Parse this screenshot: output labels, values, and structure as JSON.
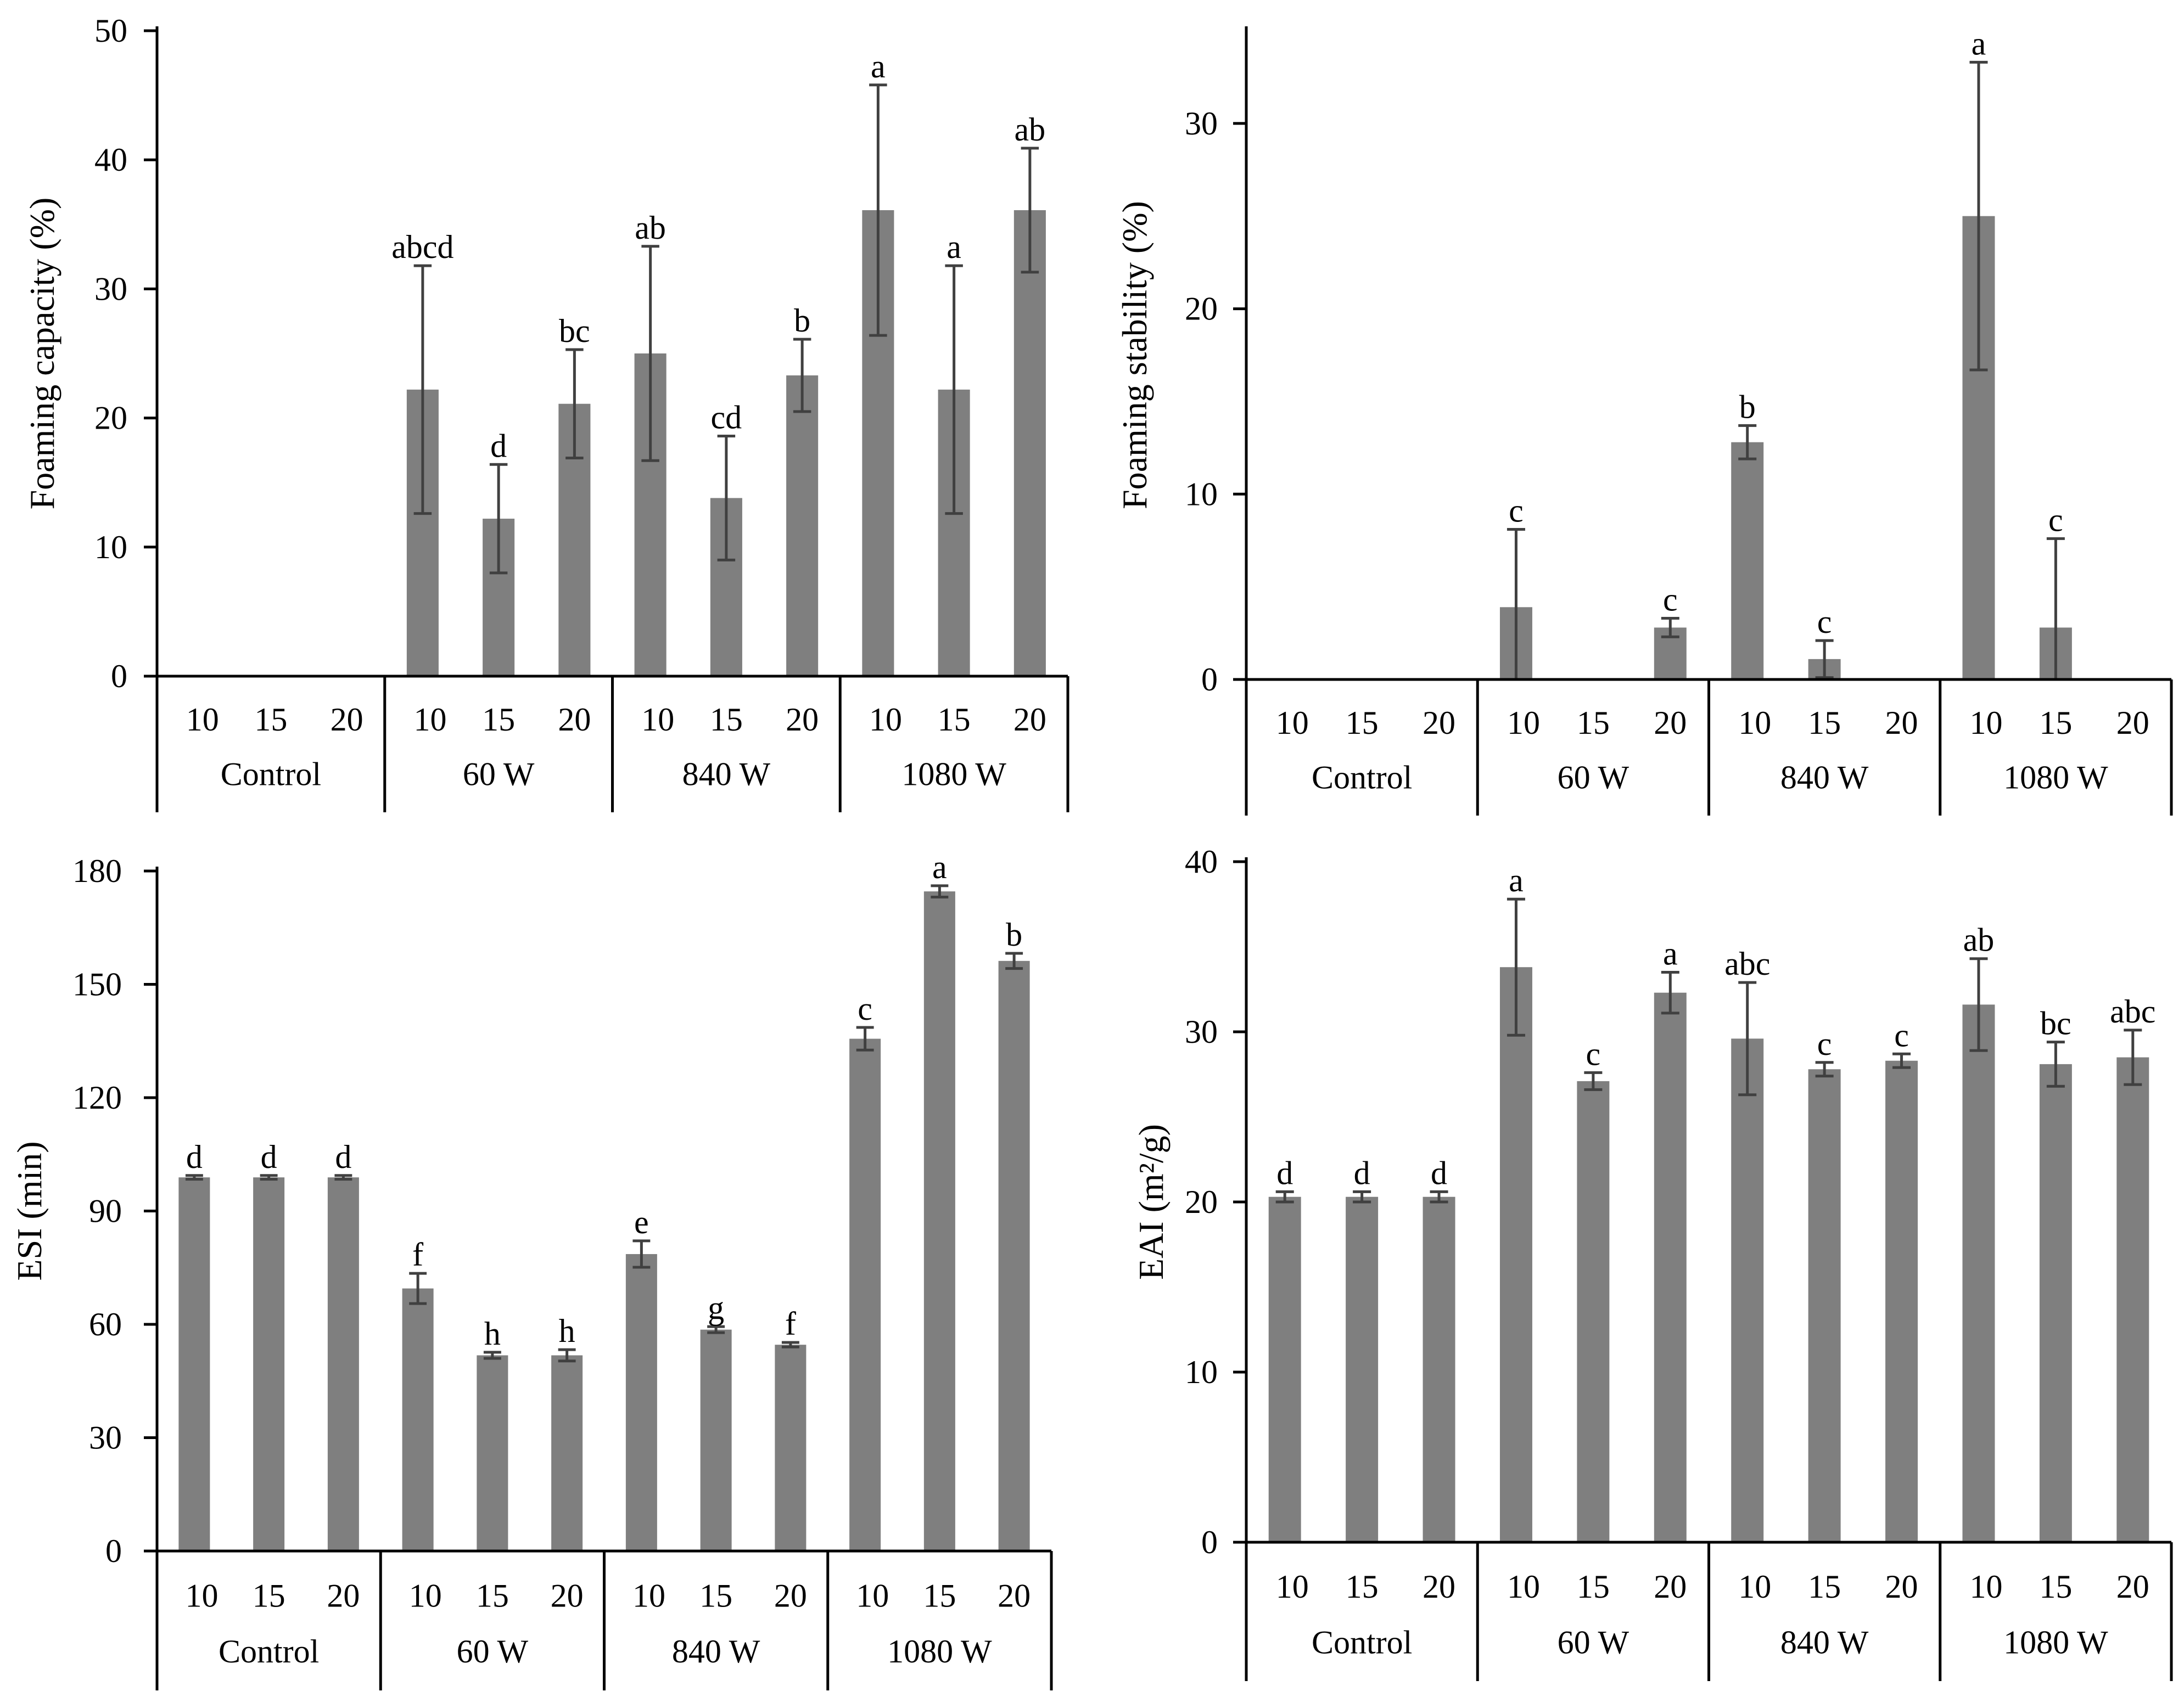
{
  "colors": {
    "bar": "#7f7f7f",
    "error_bar": "#404040",
    "axis": "#000000",
    "text": "#000000"
  },
  "chart_data": [
    {
      "id": "foaming-capacity",
      "type": "bar",
      "position": "top-left",
      "ylabel": "Foaming capacity (%)",
      "ylim": [
        0,
        50
      ],
      "yticks": [
        0,
        10,
        20,
        30,
        40,
        50
      ],
      "groups": [
        "Control",
        "60 W",
        "840 W",
        "1080 W"
      ],
      "subcategories": [
        "10",
        "15",
        "20"
      ],
      "values": [
        0,
        0,
        0,
        22.2,
        12.2,
        21.1,
        25.0,
        13.8,
        23.3,
        36.1,
        22.2,
        36.1
      ],
      "errors": [
        0,
        0,
        0,
        9.6,
        4.2,
        4.2,
        8.3,
        4.8,
        2.8,
        9.7,
        9.6,
        4.8
      ],
      "significance": [
        "",
        "",
        "",
        "abcd",
        "d",
        "bc",
        "ab",
        "cd",
        "b",
        "a",
        "a",
        "ab"
      ]
    },
    {
      "id": "foaming-stability",
      "type": "bar",
      "position": "top-right",
      "ylabel": "Foaming stability (%)",
      "ylim": [
        0,
        35
      ],
      "yticks": [
        0,
        10,
        20,
        30
      ],
      "groups": [
        "Control",
        "60 W",
        "840 W",
        "1080 W"
      ],
      "subcategories": [
        "10",
        "15",
        "20"
      ],
      "values": [
        0,
        0,
        0,
        3.9,
        0,
        2.8,
        12.8,
        1.1,
        0,
        25.0,
        2.8,
        0
      ],
      "errors": [
        0,
        0,
        0,
        4.2,
        0,
        0.5,
        0.9,
        1.0,
        0,
        8.3,
        4.8,
        0
      ],
      "significance": [
        "",
        "",
        "",
        "c",
        "",
        "c",
        "b",
        "c",
        "",
        "a",
        "c",
        ""
      ]
    },
    {
      "id": "esi",
      "type": "bar",
      "position": "bottom-left",
      "ylabel": "ESI (min)",
      "ylim": [
        0,
        180
      ],
      "yticks": [
        0,
        30,
        60,
        90,
        120,
        150,
        180
      ],
      "groups": [
        "Control",
        "60 W",
        "840 W",
        "1080 W"
      ],
      "subcategories": [
        "10",
        "15",
        "20"
      ],
      "values": [
        98.9,
        98.9,
        98.9,
        69.5,
        51.8,
        51.8,
        78.6,
        58.6,
        54.6,
        135.6,
        174.6,
        156.2
      ],
      "errors": [
        0.5,
        0.5,
        0.5,
        4.0,
        0.8,
        1.5,
        3.5,
        0.8,
        0.6,
        3.0,
        1.5,
        2.0
      ],
      "significance": [
        "d",
        "d",
        "d",
        "f",
        "h",
        "h",
        "e",
        "g",
        "f",
        "c",
        "a",
        "b"
      ]
    },
    {
      "id": "eai",
      "type": "bar",
      "position": "bottom-right",
      "ylabel": "EAI (m²/g)",
      "ylim": [
        0,
        40
      ],
      "yticks": [
        0,
        10,
        20,
        30,
        40
      ],
      "groups": [
        "Control",
        "60 W",
        "840 W",
        "1080 W"
      ],
      "subcategories": [
        "10",
        "15",
        "20"
      ],
      "values": [
        20.3,
        20.3,
        20.3,
        33.8,
        27.1,
        32.3,
        29.6,
        27.8,
        28.3,
        31.6,
        28.1,
        28.5
      ],
      "errors": [
        0.3,
        0.3,
        0.3,
        4.0,
        0.5,
        1.2,
        3.3,
        0.4,
        0.4,
        2.7,
        1.3,
        1.6
      ],
      "significance": [
        "d",
        "d",
        "d",
        "a",
        "c",
        "a",
        "abc",
        "c",
        "c",
        "ab",
        "bc",
        "abc"
      ]
    }
  ]
}
